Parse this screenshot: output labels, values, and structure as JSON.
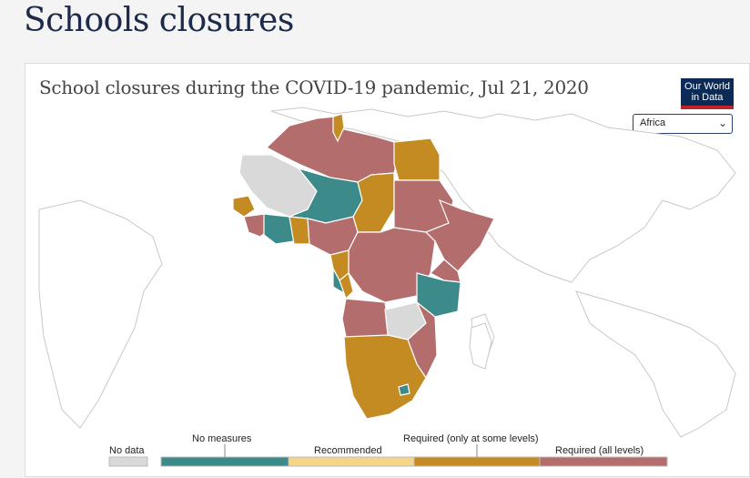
{
  "page": {
    "heading": "Schools closures"
  },
  "chart": {
    "title": "School closures during the COVID-19 pandemic, Jul 21, 2020",
    "logo_line1": "Our World",
    "logo_line2": "in Data",
    "region_selected": "Africa"
  },
  "colors": {
    "no_data": "#d9d9d9",
    "no_measures": "#3d8a8a",
    "recommended": "#f4d68a",
    "required_some": "#c48b23",
    "required_all": "#b46d6d",
    "land_outline": "#c8c8c8"
  },
  "legend": {
    "no_data": "No data",
    "no_measures": "No measures",
    "recommended": "Recommended",
    "required_some": "Required (only at some levels)",
    "required_all": "Required (all levels)"
  },
  "chart_data": {
    "type": "choropleth",
    "region": "Africa",
    "date": "Jul 21, 2020",
    "categories": [
      "No data",
      "No measures",
      "Recommended",
      "Required (only at some levels)",
      "Required (all levels)"
    ]
  }
}
